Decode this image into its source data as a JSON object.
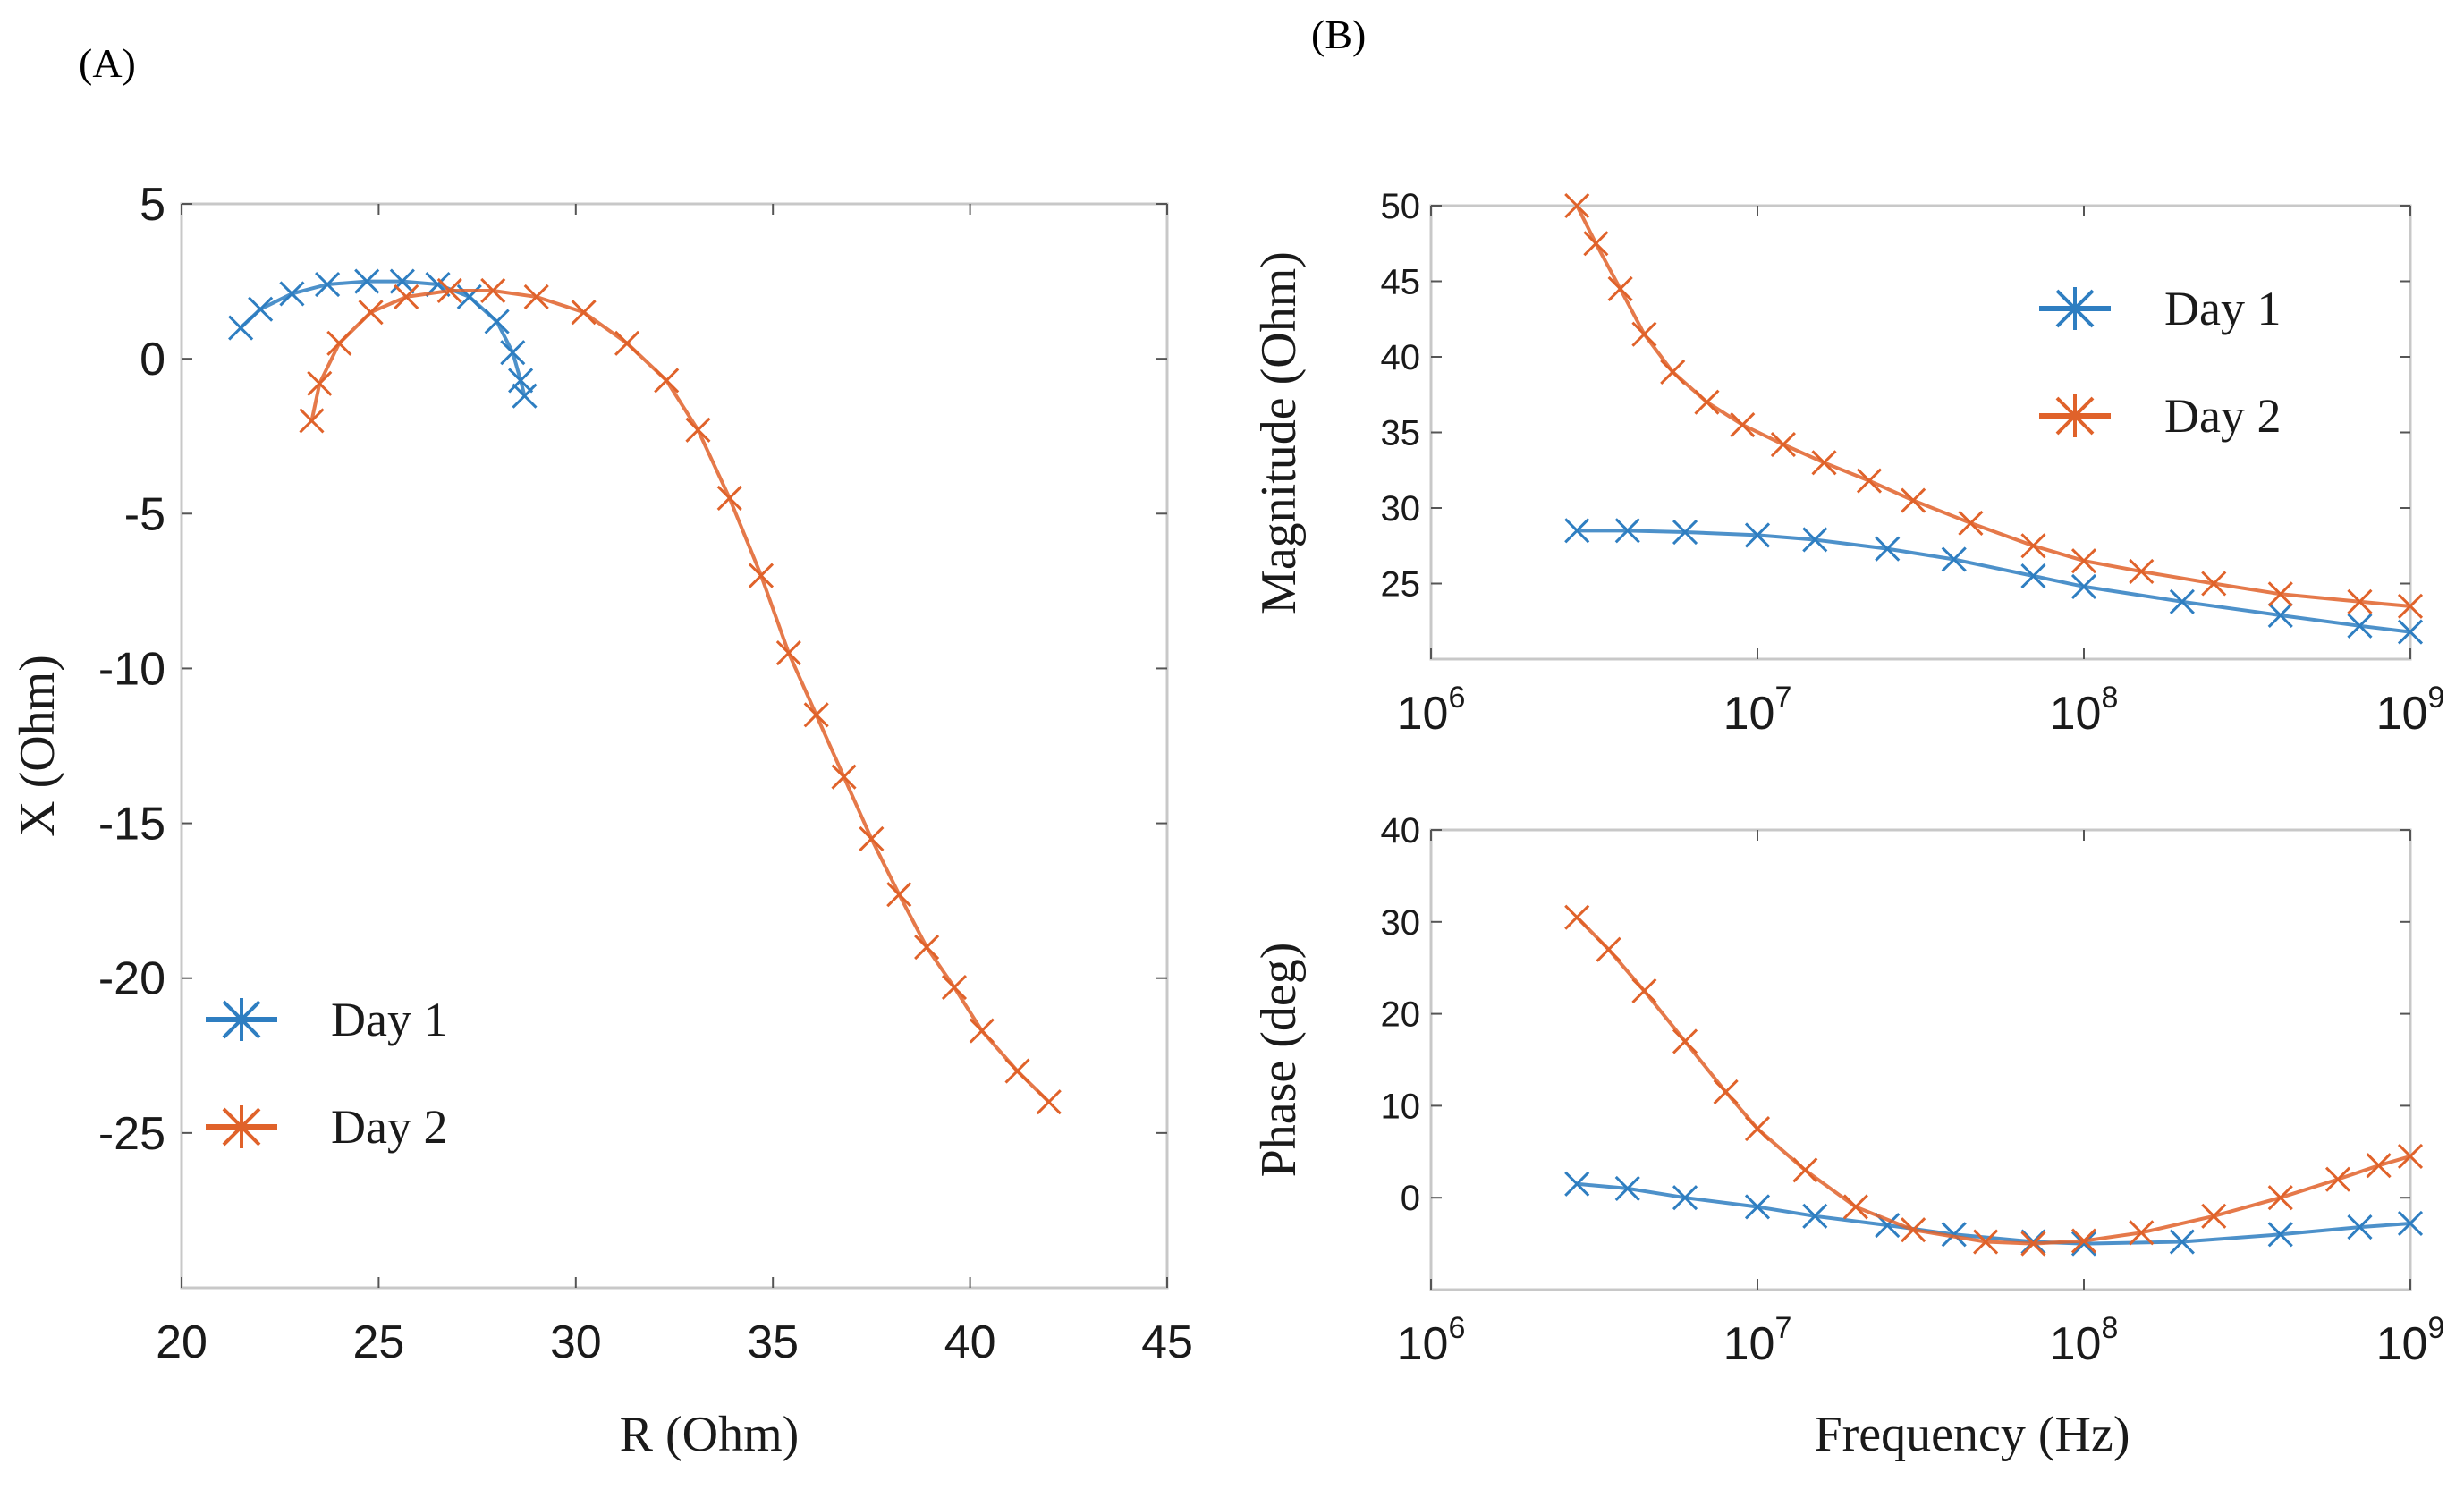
{
  "panels": {
    "a_label": "(A)",
    "b_label": "(B)"
  },
  "colors": {
    "day1": "#2e7ec1",
    "day2": "#e0622a"
  },
  "chart_data": [
    {
      "id": "A",
      "type": "scatter",
      "title": "",
      "xlabel": "R (Ohm)",
      "ylabel": "X (Ohm)",
      "xlim": [
        20,
        45
      ],
      "ylim": [
        -30,
        5
      ],
      "xticks": [
        20,
        25,
        30,
        35,
        40,
        45
      ],
      "xtick_labels": [
        "20",
        "25",
        "30",
        "35",
        "40",
        "45"
      ],
      "yticks": [
        5,
        0,
        -5,
        -10,
        -15,
        -20,
        -25
      ],
      "ytick_labels": [
        "5",
        "0",
        "-5",
        "-10",
        "-15",
        "-20",
        "-25"
      ],
      "legend": "bottom-left",
      "grid": false,
      "series": [
        {
          "name": "Day 1",
          "marker": "x",
          "x": [
            21.5,
            22.0,
            22.8,
            23.7,
            24.7,
            25.6,
            26.5,
            27.3,
            28.0,
            28.4,
            28.6,
            28.7
          ],
          "y": [
            1.0,
            1.6,
            2.1,
            2.4,
            2.5,
            2.5,
            2.4,
            2.0,
            1.2,
            0.2,
            -0.7,
            -1.2
          ]
        },
        {
          "name": "Day 2",
          "marker": "x",
          "x": [
            23.3,
            23.5,
            24.0,
            24.8,
            25.7,
            26.8,
            27.9,
            29.0,
            30.2,
            31.3,
            32.3,
            33.1,
            33.9,
            34.7,
            35.4,
            36.1,
            36.8,
            37.5,
            38.2,
            38.9,
            39.6,
            40.3,
            41.2,
            42.0
          ],
          "y": [
            -2.0,
            -0.8,
            0.5,
            1.5,
            2.0,
            2.2,
            2.2,
            2.0,
            1.5,
            0.5,
            -0.7,
            -2.3,
            -4.5,
            -7.0,
            -9.5,
            -11.5,
            -13.5,
            -15.5,
            -17.3,
            -19.0,
            -20.3,
            -21.7,
            -23.0,
            -24.0
          ]
        }
      ]
    },
    {
      "id": "B-magnitude",
      "type": "scatter",
      "title": "",
      "xlabel": "",
      "ylabel": "Magnitude (Ohm)",
      "xscale": "log",
      "xlim": [
        1000000,
        1000000000
      ],
      "ylim": [
        20,
        50
      ],
      "xticks": [
        1000000,
        10000000,
        100000000,
        1000000000
      ],
      "xtick_labels": [
        {
          "base": "10",
          "exp": "6"
        },
        {
          "base": "10",
          "exp": "7"
        },
        {
          "base": "10",
          "exp": "8"
        },
        {
          "base": "10",
          "exp": "9"
        }
      ],
      "yticks": [
        50,
        45,
        40,
        35,
        30,
        25
      ],
      "ytick_labels": [
        "50",
        "45",
        "40",
        "35",
        "30",
        "25"
      ],
      "legend": "top-right",
      "grid": false,
      "series": [
        {
          "name": "Day 1",
          "marker": "x",
          "x": [
            2800000,
            4000000,
            6000000,
            10000000,
            15000000,
            25000000,
            40000000,
            70000000,
            100000000,
            200000000,
            400000000,
            700000000,
            1000000000
          ],
          "y": [
            28.5,
            28.5,
            28.4,
            28.2,
            27.9,
            27.3,
            26.6,
            25.5,
            24.8,
            23.8,
            22.9,
            22.2,
            21.8
          ]
        },
        {
          "name": "Day 2",
          "marker": "x",
          "x": [
            2800000,
            3200000,
            3800000,
            4500000,
            5500000,
            7000000,
            9000000,
            12000000,
            16000000,
            22000000,
            30000000,
            45000000,
            70000000,
            100000000,
            150000000,
            250000000,
            400000000,
            700000000,
            1000000000
          ],
          "y": [
            50,
            47.5,
            44.5,
            41.5,
            39.0,
            37.0,
            35.5,
            34.2,
            33.0,
            31.8,
            30.5,
            29.0,
            27.5,
            26.5,
            25.8,
            25.0,
            24.3,
            23.8,
            23.5
          ]
        }
      ]
    },
    {
      "id": "B-phase",
      "type": "scatter",
      "title": "",
      "xlabel": "Frequency (Hz)",
      "ylabel": "Phase (deg)",
      "xscale": "log",
      "xlim": [
        1000000,
        1000000000
      ],
      "ylim": [
        -10,
        40
      ],
      "xticks": [
        1000000,
        10000000,
        100000000,
        1000000000
      ],
      "xtick_labels": [
        {
          "base": "10",
          "exp": "6"
        },
        {
          "base": "10",
          "exp": "7"
        },
        {
          "base": "10",
          "exp": "8"
        },
        {
          "base": "10",
          "exp": "9"
        }
      ],
      "yticks": [
        40,
        30,
        20,
        10,
        0
      ],
      "ytick_labels": [
        "40",
        "30",
        "20",
        "10",
        "0"
      ],
      "legend": "none",
      "grid": false,
      "series": [
        {
          "name": "Day 1",
          "marker": "x",
          "x": [
            2800000,
            4000000,
            6000000,
            10000000,
            15000000,
            25000000,
            40000000,
            70000000,
            100000000,
            200000000,
            400000000,
            700000000,
            1000000000
          ],
          "y": [
            1.5,
            1.0,
            0.0,
            -1.0,
            -2.0,
            -3.0,
            -4.0,
            -4.8,
            -5.0,
            -4.8,
            -4.0,
            -3.2,
            -2.8
          ]
        },
        {
          "name": "Day 2",
          "marker": "x",
          "x": [
            2800000,
            3500000,
            4500000,
            6000000,
            8000000,
            10000000,
            14000000,
            20000000,
            30000000,
            50000000,
            70000000,
            100000000,
            150000000,
            250000000,
            400000000,
            600000000,
            800000000,
            1000000000
          ],
          "y": [
            30.5,
            27.0,
            22.5,
            17.0,
            11.5,
            7.5,
            3.0,
            -1.0,
            -3.5,
            -4.8,
            -5.0,
            -4.7,
            -3.8,
            -2.0,
            0.0,
            2.0,
            3.5,
            4.5
          ]
        }
      ]
    }
  ]
}
